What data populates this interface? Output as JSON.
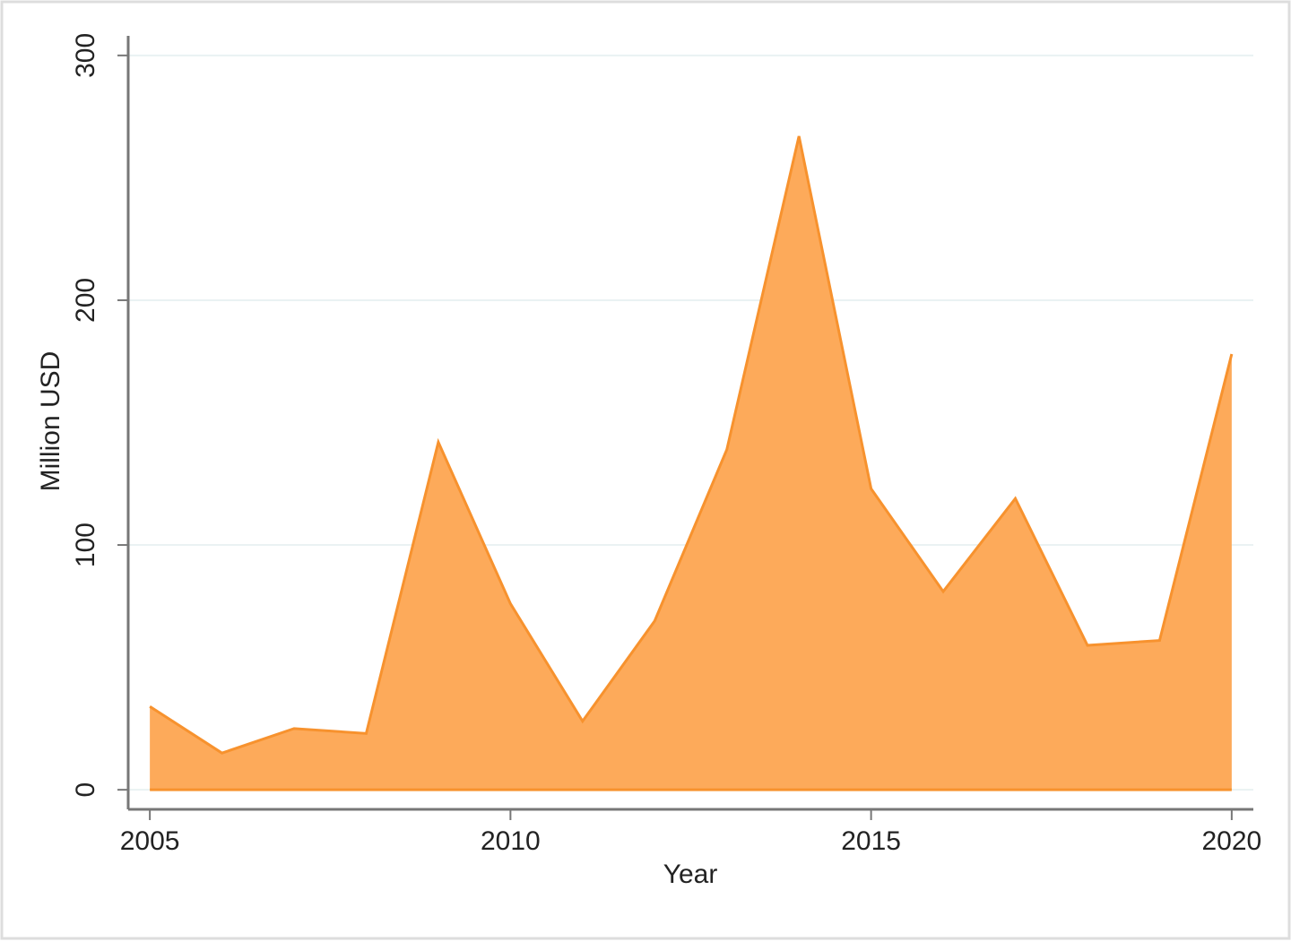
{
  "chart_data": {
    "type": "area",
    "xlabel": "Year",
    "ylabel": "Million USD",
    "x": [
      2005,
      2006,
      2007,
      2008,
      2009,
      2010,
      2011,
      2012,
      2013,
      2014,
      2015,
      2016,
      2017,
      2018,
      2019,
      2020
    ],
    "values": [
      34,
      15,
      25,
      23,
      142,
      76,
      28,
      69,
      139,
      267,
      123,
      81,
      119,
      59,
      61,
      178
    ],
    "color": "#fdaa5a",
    "line_color": "#f7922e",
    "xlim": [
      2004.7,
      2020.3
    ],
    "xticks": [
      2005,
      2010,
      2015,
      2020
    ],
    "ylim": [
      -8,
      308
    ],
    "yticks": [
      0,
      100,
      200,
      300
    ],
    "grid": true
  }
}
